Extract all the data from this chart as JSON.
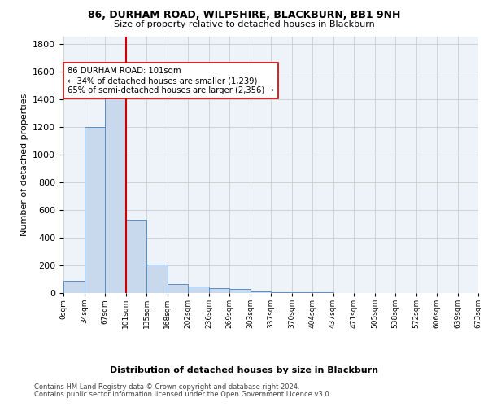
{
  "title1": "86, DURHAM ROAD, WILPSHIRE, BLACKBURN, BB1 9NH",
  "title2": "Size of property relative to detached houses in Blackburn",
  "xlabel": "Distribution of detached houses by size in Blackburn",
  "ylabel": "Number of detached properties",
  "bar_values": [
    90,
    1200,
    1450,
    530,
    205,
    65,
    45,
    35,
    28,
    10,
    8,
    5,
    3,
    2,
    1,
    1,
    0,
    0,
    0,
    0
  ],
  "x_tick_labels": [
    "0sqm",
    "34sqm",
    "67sqm",
    "101sqm",
    "135sqm",
    "168sqm",
    "202sqm",
    "236sqm",
    "269sqm",
    "303sqm",
    "337sqm",
    "370sqm",
    "404sqm",
    "437sqm",
    "471sqm",
    "505sqm",
    "538sqm",
    "572sqm",
    "606sqm",
    "639sqm",
    "673sqm"
  ],
  "n_bins": 20,
  "property_bin_edge": 3,
  "bar_color": "#c9d9ed",
  "bar_edge_color": "#5b8ec4",
  "vline_color": "#cc0000",
  "annotation_text": "86 DURHAM ROAD: 101sqm\n← 34% of detached houses are smaller (1,239)\n65% of semi-detached houses are larger (2,356) →",
  "annotation_box_color": "#ffffff",
  "annotation_box_edge": "#cc0000",
  "grid_color": "#cccccc",
  "bg_color": "#eef2f9",
  "footer1": "Contains HM Land Registry data © Crown copyright and database right 2024.",
  "footer2": "Contains public sector information licensed under the Open Government Licence v3.0.",
  "ylim": [
    0,
    1850
  ],
  "yticks": [
    0,
    200,
    400,
    600,
    800,
    1000,
    1200,
    1400,
    1600,
    1800
  ]
}
